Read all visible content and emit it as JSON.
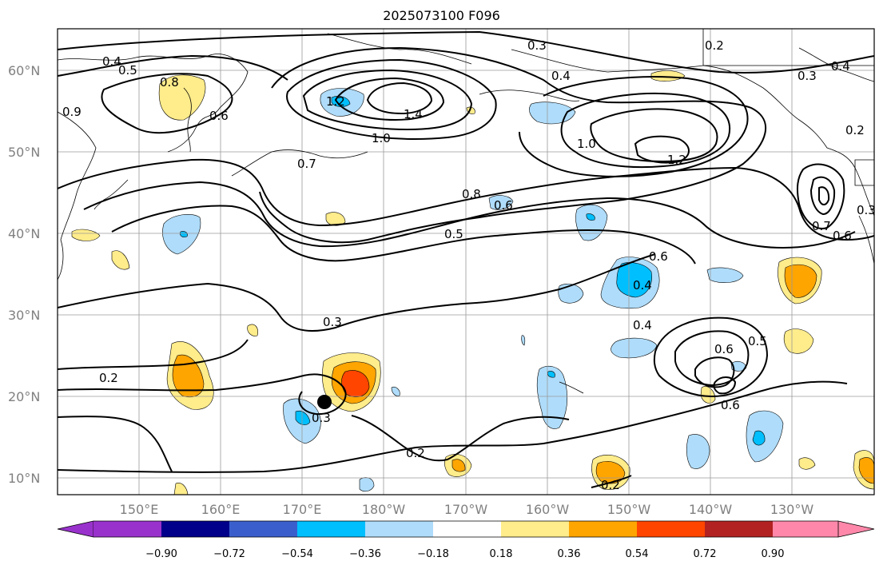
{
  "title": "2025073100 F096",
  "map": {
    "lat_labels": [
      "60°N",
      "50°N",
      "40°N",
      "30°N",
      "20°N",
      "10°N"
    ],
    "lon_labels": [
      "150°E",
      "160°E",
      "170°E",
      "180°W",
      "170°W",
      "160°W",
      "150°W",
      "140°W",
      "130°W"
    ],
    "contour_labels": [
      "0.4",
      "0.5",
      "0.8",
      "0.6",
      "0.9",
      "1.2",
      "1.4",
      "1.0",
      "0.7",
      "0.3",
      "0.4",
      "0.2",
      "0.3",
      "0.4",
      "0.2",
      "1.0",
      "1.2",
      "0.8",
      "0.6",
      "0.5",
      "0.6",
      "0.4",
      "0.4",
      "0.6",
      "0.5",
      "0.7",
      "0.6",
      "0.3",
      "0.3",
      "0.2",
      "0.3",
      "0.2",
      "0.6",
      "0.2"
    ],
    "colors": {
      "land_line": "#000000",
      "grid": "#9a9a9a",
      "contour": "#000000"
    }
  },
  "colorbar": {
    "ticks": [
      "−0.90",
      "−0.72",
      "−0.54",
      "−0.36",
      "−0.18",
      "0.18",
      "0.36",
      "0.54",
      "0.72",
      "0.90"
    ],
    "colors": [
      "#9932cc",
      "#00008b",
      "#3a5fcd",
      "#00bfff",
      "#afdcfa",
      "#ffffff",
      "#ffec8b",
      "#ffa500",
      "#ff4500",
      "#b22222",
      "#ff88aa"
    ]
  }
}
